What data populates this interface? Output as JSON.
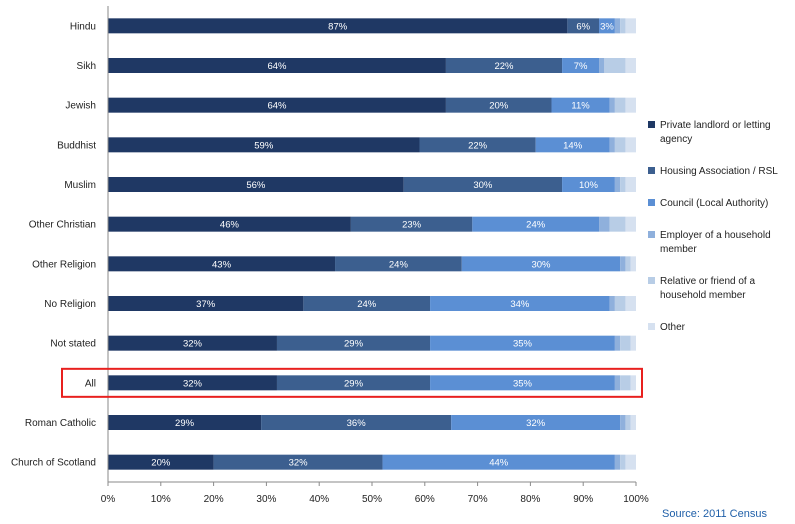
{
  "chart_data": {
    "type": "bar",
    "orientation": "horizontal",
    "stacked": true,
    "categories": [
      "Hindu",
      "Sikh",
      "Jewish",
      "Buddhist",
      "Muslim",
      "Other Christian",
      "Other Religion",
      "No Religion",
      "Not stated",
      "All",
      "Roman Catholic",
      "Church of Scotland"
    ],
    "series": [
      {
        "name": "Private landlord or letting agency",
        "color": "#1f3864",
        "values": [
          87,
          64,
          64,
          59,
          56,
          46,
          43,
          37,
          32,
          32,
          29,
          20
        ],
        "labels": [
          "87%",
          "64%",
          "64%",
          "59%",
          "56%",
          "46%",
          "43%",
          "37%",
          "32%",
          "32%",
          "29%",
          "20%"
        ]
      },
      {
        "name": "Housing Association / RSL",
        "color": "#3c5f8f",
        "values": [
          6,
          22,
          20,
          22,
          30,
          23,
          24,
          24,
          29,
          29,
          36,
          32
        ],
        "labels": [
          "6%",
          "22%",
          "20%",
          "22%",
          "30%",
          "23%",
          "24%",
          "24%",
          "29%",
          "29%",
          "36%",
          "32%"
        ]
      },
      {
        "name": "Council (Local Authority)",
        "color": "#5b8fd4",
        "values": [
          3,
          7,
          11,
          14,
          10,
          24,
          30,
          34,
          35,
          35,
          32,
          44
        ],
        "labels": [
          "3%",
          "7%",
          "11%",
          "14%",
          "10%",
          "24%",
          "30%",
          "34%",
          "35%",
          "35%",
          "32%",
          "44%"
        ]
      },
      {
        "name": "Employer of a household member",
        "color": "#8fb0dc",
        "values": [
          1,
          1,
          1,
          1,
          1,
          2,
          1,
          1,
          1,
          1,
          1,
          1
        ],
        "labels": [
          "",
          "",
          "",
          "",
          "",
          "",
          "",
          "",
          "",
          "",
          "",
          ""
        ]
      },
      {
        "name": "Relative or friend of a household member",
        "color": "#b8cde6",
        "values": [
          1,
          4,
          2,
          2,
          1,
          3,
          1,
          2,
          2,
          2,
          1,
          1
        ],
        "labels": [
          "",
          "",
          "",
          "",
          "",
          "",
          "",
          "",
          "",
          "",
          "",
          ""
        ]
      },
      {
        "name": "Other",
        "color": "#d6e1f0",
        "values": [
          2,
          2,
          2,
          2,
          2,
          2,
          1,
          2,
          1,
          1,
          1,
          2
        ],
        "labels": [
          "",
          "",
          "",
          "",
          "",
          "",
          "",
          "",
          "",
          "",
          "",
          ""
        ]
      }
    ],
    "xlim": [
      0,
      100
    ],
    "xticks": [
      "0%",
      "10%",
      "20%",
      "30%",
      "40%",
      "50%",
      "60%",
      "70%",
      "80%",
      "90%",
      "100%"
    ],
    "highlight_category": "All",
    "highlight_color": "#e8201e",
    "legend_position": "right",
    "grid": false,
    "source": "Source: 2011 Census"
  }
}
